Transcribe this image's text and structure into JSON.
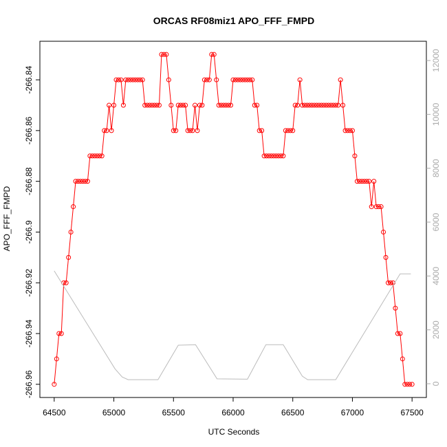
{
  "chart_data": {
    "type": "line",
    "title": "ORCAS RF08miz1 APO_FFF_FMPD",
    "x_label": "UTC Seconds",
    "y_label": "APO_FFF_FMPD",
    "xlim": [
      64380,
      67620
    ],
    "xticks": [
      64500,
      65000,
      65500,
      66000,
      66500,
      67000,
      67500
    ],
    "ylim": [
      -266.9652,
      -266.8248
    ],
    "yticks": [
      -266.96,
      -266.94,
      -266.92,
      -266.9,
      -266.88,
      -266.86,
      -266.84
    ],
    "y2lim": [
      -511,
      12715
    ],
    "y2ticks": [
      0,
      2000,
      4000,
      6000,
      8000,
      10000,
      12000
    ],
    "y2_color": "#aaaaaa",
    "series": [
      {
        "color": "#ff0000",
        "markers": true,
        "x": [
          64500,
          64520,
          64540,
          64560,
          64580,
          64600,
          64620,
          64640,
          64660,
          64680,
          64700,
          64720,
          64740,
          64760,
          64780,
          64800,
          64820,
          64840,
          64860,
          64880,
          64900,
          64920,
          64940,
          64960,
          64980,
          65000,
          65020,
          65040,
          65060,
          65080,
          65100,
          65120,
          65140,
          65160,
          65180,
          65200,
          65220,
          65240,
          65260,
          65280,
          65300,
          65320,
          65340,
          65360,
          65380,
          65400,
          65420,
          65440,
          65460,
          65480,
          65500,
          65520,
          65540,
          65560,
          65580,
          65600,
          65620,
          65640,
          65660,
          65680,
          65700,
          65720,
          65740,
          65760,
          65780,
          65800,
          65820,
          65840,
          65860,
          65880,
          65900,
          65920,
          65940,
          65960,
          65980,
          66000,
          66020,
          66040,
          66060,
          66080,
          66100,
          66120,
          66140,
          66160,
          66180,
          66200,
          66220,
          66240,
          66260,
          66280,
          66300,
          66320,
          66340,
          66360,
          66380,
          66400,
          66420,
          66440,
          66460,
          66480,
          66500,
          66520,
          66540,
          66560,
          66580,
          66600,
          66620,
          66640,
          66660,
          66680,
          66700,
          66720,
          66740,
          66760,
          66780,
          66800,
          66820,
          66840,
          66860,
          66880,
          66900,
          66920,
          66940,
          66960,
          66980,
          67000,
          67020,
          67040,
          67060,
          67080,
          67100,
          67120,
          67140,
          67160,
          67180,
          67200,
          67220,
          67240,
          67260,
          67280,
          67300,
          67320,
          67340,
          67360,
          67380,
          67400,
          67420,
          67440,
          67460,
          67480,
          67500
        ],
        "values": [
          -266.96,
          -266.95,
          -266.94,
          -266.94,
          -266.92,
          -266.92,
          -266.91,
          -266.9,
          -266.89,
          -266.88,
          -266.88,
          -266.88,
          -266.88,
          -266.88,
          -266.88,
          -266.87,
          -266.87,
          -266.87,
          -266.87,
          -266.87,
          -266.87,
          -266.86,
          -266.86,
          -266.85,
          -266.86,
          -266.85,
          -266.84,
          -266.84,
          -266.84,
          -266.85,
          -266.84,
          -266.84,
          -266.84,
          -266.84,
          -266.84,
          -266.84,
          -266.84,
          -266.84,
          -266.85,
          -266.85,
          -266.85,
          -266.85,
          -266.85,
          -266.85,
          -266.85,
          -266.83,
          -266.83,
          -266.83,
          -266.84,
          -266.85,
          -266.86,
          -266.86,
          -266.85,
          -266.85,
          -266.85,
          -266.85,
          -266.86,
          -266.86,
          -266.86,
          -266.85,
          -266.86,
          -266.85,
          -266.85,
          -266.84,
          -266.84,
          -266.84,
          -266.83,
          -266.83,
          -266.84,
          -266.85,
          -266.85,
          -266.85,
          -266.85,
          -266.85,
          -266.85,
          -266.84,
          -266.84,
          -266.84,
          -266.84,
          -266.84,
          -266.84,
          -266.84,
          -266.84,
          -266.84,
          -266.85,
          -266.85,
          -266.86,
          -266.86,
          -266.87,
          -266.87,
          -266.87,
          -266.87,
          -266.87,
          -266.87,
          -266.87,
          -266.87,
          -266.87,
          -266.86,
          -266.86,
          -266.86,
          -266.86,
          -266.85,
          -266.85,
          -266.84,
          -266.85,
          -266.85,
          -266.85,
          -266.85,
          -266.85,
          -266.85,
          -266.85,
          -266.85,
          -266.85,
          -266.85,
          -266.85,
          -266.85,
          -266.85,
          -266.85,
          -266.85,
          -266.85,
          -266.84,
          -266.85,
          -266.86,
          -266.86,
          -266.86,
          -266.86,
          -266.87,
          -266.88,
          -266.88,
          -266.88,
          -266.88,
          -266.88,
          -266.88,
          -266.89,
          -266.88,
          -266.89,
          -266.89,
          -266.89,
          -266.9,
          -266.91,
          -266.92,
          -266.92,
          -266.92,
          -266.93,
          -266.94,
          -266.94,
          -266.95,
          -266.96,
          -266.96,
          -266.96,
          -266.96
        ]
      },
      {
        "color": "#bbbbbb",
        "markers": false,
        "axis": "y2",
        "x": [
          64500,
          65010,
          65070,
          65120,
          65370,
          65540,
          65685,
          65865,
          66120,
          66275,
          66420,
          66580,
          66625,
          66860,
          67400,
          67490
        ],
        "values": [
          4190,
          550,
          250,
          150,
          150,
          1430,
          1450,
          180,
          170,
          1450,
          1450,
          280,
          150,
          150,
          4080,
          4080
        ]
      }
    ]
  }
}
